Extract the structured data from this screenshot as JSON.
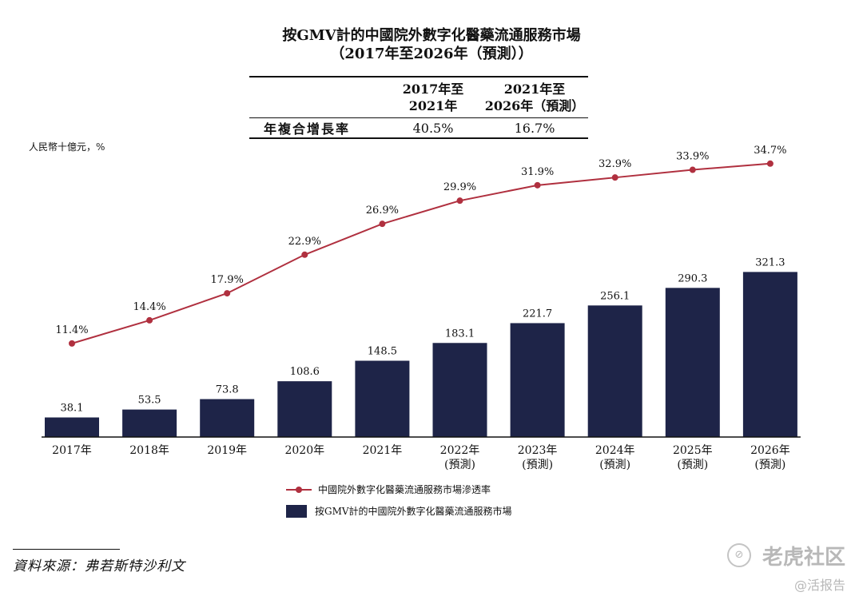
{
  "title": {
    "line1": "按GMV計的中國院外數字化醫藥流通服務市場",
    "line2": "（2017年至2026年（預測））"
  },
  "cagr_table": {
    "col1_header": "2017年至 2021年",
    "col1_line1": "2017年至",
    "col1_line2": "2021年",
    "col2_header": "2021年至 2026年（預測）",
    "col2_line1": "2021年至",
    "col2_line2": "2026年（預測）",
    "row_label": "年複合增長率",
    "col1_value": "40.5%",
    "col2_value": "16.7%"
  },
  "unit_label": "人民幣十億元，%",
  "legend": {
    "line": "中國院外數字化醫藥流通服務市場滲透率",
    "bar": "按GMV計的中國院外數字化醫藥流通服務市場"
  },
  "source": "資料來源：弗若斯特沙利文",
  "watermark": {
    "brand": "老虎社区",
    "handle": "@活报告"
  },
  "colors": {
    "bar": "#1e2448",
    "line": "#b0303f",
    "axis": "#111111"
  },
  "chart_data": {
    "type": "bar+line",
    "title": "按GMV計的中國院外數字化醫藥流通服務市場（2017年至2026年（預測））",
    "ylabel": "人民幣十億元，%",
    "categories": [
      [
        "2017年"
      ],
      [
        "2018年"
      ],
      [
        "2019年"
      ],
      [
        "2020年"
      ],
      [
        "2021年"
      ],
      [
        "2022年",
        "(預測)"
      ],
      [
        "2023年",
        "(預測)"
      ],
      [
        "2024年",
        "(預測)"
      ],
      [
        "2025年",
        "(預測)"
      ],
      [
        "2026年",
        "(預測)"
      ]
    ],
    "series": [
      {
        "name": "按GMV計的中國院外數字化醫藥流通服務市場",
        "type": "bar",
        "values": [
          38.1,
          53.5,
          73.8,
          108.6,
          148.5,
          183.1,
          221.7,
          256.1,
          290.3,
          321.3
        ],
        "labels": [
          "38.1",
          "53.5",
          "73.8",
          "108.6",
          "148.5",
          "183.1",
          "221.7",
          "256.1",
          "290.3",
          "321.3"
        ]
      },
      {
        "name": "中國院外數字化醫藥流通服務市場滲透率",
        "type": "line",
        "values": [
          11.4,
          14.4,
          17.9,
          22.9,
          26.9,
          29.9,
          31.9,
          32.9,
          33.9,
          34.7
        ],
        "labels": [
          "11.4%",
          "14.4%",
          "17.9%",
          "22.9%",
          "26.9%",
          "29.9%",
          "31.9%",
          "32.9%",
          "33.9%",
          "34.7%"
        ]
      }
    ]
  }
}
